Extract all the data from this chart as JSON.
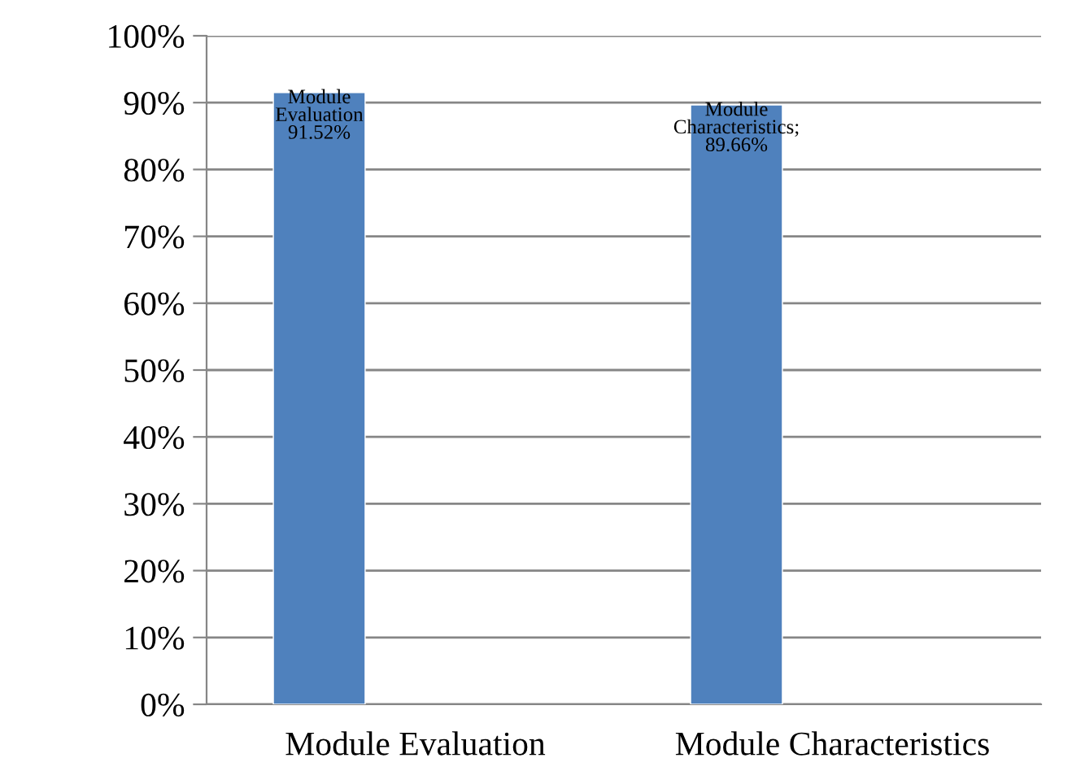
{
  "chart_data": {
    "type": "bar",
    "categories": [
      "Module Evaluation",
      "Module Characteristics"
    ],
    "values": [
      91.52,
      89.66
    ],
    "value_labels": [
      "Module\nEvaluation\n91.52%",
      "Module\nCharacteristics;\n89.66%"
    ],
    "color": "#4f81bd",
    "ylim": [
      0,
      100
    ],
    "yticks": [
      {
        "value": 0,
        "label": "0%"
      },
      {
        "value": 10,
        "label": "10%"
      },
      {
        "value": 20,
        "label": "20%"
      },
      {
        "value": 30,
        "label": "30%"
      },
      {
        "value": 40,
        "label": "40%"
      },
      {
        "value": 50,
        "label": "50%"
      },
      {
        "value": 60,
        "label": "60%"
      },
      {
        "value": 70,
        "label": "70%"
      },
      {
        "value": 80,
        "label": "80%"
      },
      {
        "value": 90,
        "label": "90%"
      },
      {
        "value": 100,
        "label": "100%"
      }
    ],
    "grid": "y",
    "legend": false
  }
}
